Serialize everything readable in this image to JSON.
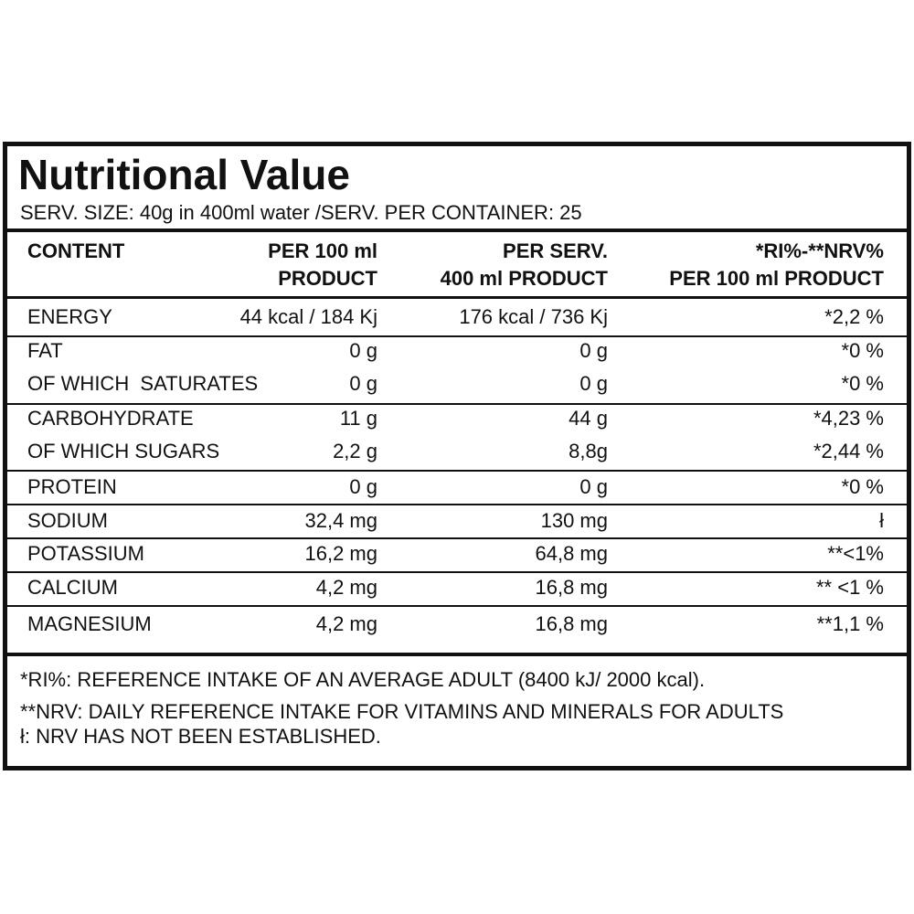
{
  "header": {
    "title": "Nutritional Value",
    "serving": "SERV. SIZE: 40g in 400ml water /SERV. PER CONTAINER: 25"
  },
  "table": {
    "columns": [
      [
        "CONTENT"
      ],
      [
        "PER 100 ml",
        "PRODUCT"
      ],
      [
        "PER SERV.",
        "400 ml PRODUCT"
      ],
      [
        "*RI%-**NRV%",
        "PER 100 ml PRODUCT"
      ]
    ],
    "rows": [
      [
        "ENERGY",
        "44 kcal / 184 Kj",
        "176 kcal / 736 Kj",
        "*2,2 %"
      ],
      [
        "FAT",
        "0 g",
        "0 g",
        "*0 %"
      ],
      [
        "OF WHICH  SATURATES",
        "0 g",
        "0 g",
        "*0 %"
      ],
      [
        "CARBOHYDRATE",
        "11 g",
        "44 g",
        "*4,23 %"
      ],
      [
        "OF WHICH SUGARS",
        "2,2 g",
        "8,8g",
        "*2,44 %"
      ],
      [
        "PROTEIN",
        "0 g",
        "0 g",
        "*0 %"
      ],
      [
        "SODIUM",
        "32,4 mg",
        "130 mg",
        "ł"
      ],
      [
        "POTASSIUM",
        "16,2 mg",
        "64,8 mg",
        "**<1%"
      ],
      [
        "CALCIUM",
        "4,2 mg",
        "16,8 mg",
        "** <1 %"
      ],
      [
        "MAGNESIUM",
        "4,2 mg",
        "16,8 mg",
        "**1,1 %"
      ]
    ]
  },
  "footnotes": [
    "*RI%: REFERENCE INTAKE OF AN AVERAGE ADULT (8400 kJ/ 2000 kcal).",
    "**NRV: DAILY REFERENCE INTAKE FOR VITAMINS AND MINERALS FOR ADULTS",
    "ł: NRV HAS NOT BEEN ESTABLISHED."
  ]
}
